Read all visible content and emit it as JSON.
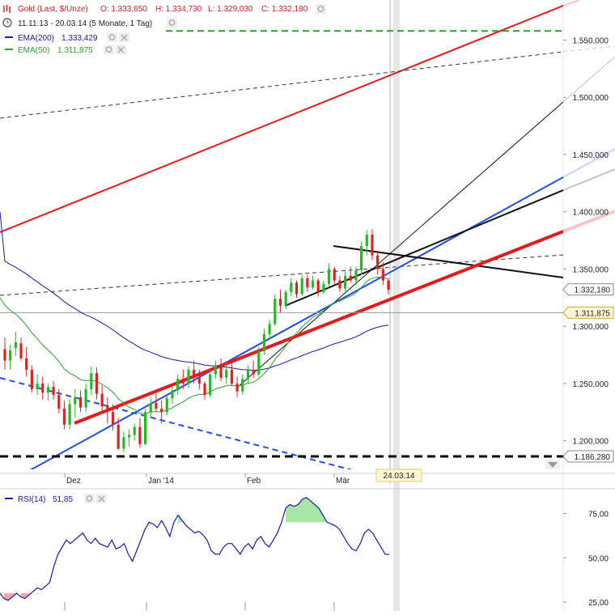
{
  "header": {
    "instrument": "Gold (Last, $/Unze)",
    "ohlc_o": "O: 1.333,650",
    "ohlc_h": "H: 1.334,730",
    "ohlc_l": "L: 1.329,030",
    "ohlc_c": "C: 1.332,180",
    "range": "11.11.13 - 20.03.14 (5 Monate, 1 Tag)",
    "ema200": "EMA(200)",
    "ema200_value": "1.333,429",
    "ema50": "EMA(50)",
    "ema50_value": "1.311,875"
  },
  "rsi_panel": {
    "label": "RSI(14)",
    "value": "51,85"
  },
  "cursor_date": "24.03.14",
  "colors": {
    "up": "#22bb22",
    "down": "#dd2222",
    "ema200": "#1a1aa8",
    "ema50": "#2ca02c",
    "trend_red": "#e31b1b",
    "trend_blue": "#1f4fe0",
    "rsi": "#1a1aa8",
    "rsi_overbought_fill": "#a8e6a8",
    "rsi_oversold_fill": "#f4a6a6"
  },
  "icons": [
    "gold-logo-icon",
    "clock-icon",
    "settings-icon",
    "close-icon",
    "scroll-down-icon"
  ],
  "chart_data": [
    {
      "type": "candlestick",
      "title": "Gold (Last, $/Unze)",
      "x_ticks": [
        "Dez",
        "Jan '14",
        "Feb",
        "Mär"
      ],
      "y_ticks": [
        "1.200,000",
        "1.250,000",
        "1.300,000",
        "1.350,000",
        "1.400,000",
        "1.450,000",
        "1.500,000",
        "1.550,000"
      ],
      "ylim": [
        1175,
        1585
      ],
      "price_tags": [
        {
          "text": "1.332,180",
          "value": 1332.18
        },
        {
          "text": "1.311,875",
          "value": 1311.875
        },
        {
          "text": "1.186,280",
          "value": 1186.28
        }
      ],
      "horizontal_levels": [
        {
          "value": 1558,
          "style": "dashed",
          "color": "#2ca02c"
        },
        {
          "value": 1186.28,
          "style": "dashed",
          "color": "#000000"
        },
        {
          "value": 1311.875,
          "style": "solid",
          "color": "#999999"
        }
      ],
      "candles": [
        [
          1280,
          1290,
          1262,
          1270
        ],
        [
          1270,
          1284,
          1262,
          1279
        ],
        [
          1281,
          1295,
          1274,
          1286
        ],
        [
          1285,
          1290,
          1270,
          1272
        ],
        [
          1272,
          1282,
          1256,
          1262
        ],
        [
          1262,
          1266,
          1242,
          1245
        ],
        [
          1245,
          1258,
          1240,
          1250
        ],
        [
          1250,
          1256,
          1236,
          1242
        ],
        [
          1242,
          1250,
          1235,
          1247
        ],
        [
          1247,
          1252,
          1236,
          1240
        ],
        [
          1240,
          1245,
          1224,
          1228
        ],
        [
          1228,
          1235,
          1210,
          1214
        ],
        [
          1214,
          1236,
          1210,
          1232
        ],
        [
          1232,
          1245,
          1220,
          1238
        ],
        [
          1238,
          1244,
          1225,
          1229
        ],
        [
          1229,
          1250,
          1225,
          1245
        ],
        [
          1245,
          1265,
          1240,
          1259
        ],
        [
          1259,
          1264,
          1236,
          1241
        ],
        [
          1241,
          1248,
          1226,
          1230
        ],
        [
          1230,
          1238,
          1215,
          1225
        ],
        [
          1225,
          1232,
          1209,
          1214
        ],
        [
          1214,
          1220,
          1192,
          1193
        ],
        [
          1193,
          1208,
          1190,
          1203
        ],
        [
          1203,
          1210,
          1195,
          1205
        ],
        [
          1205,
          1215,
          1200,
          1212
        ],
        [
          1212,
          1220,
          1194,
          1197
        ],
        [
          1197,
          1228,
          1196,
          1225
        ],
        [
          1225,
          1238,
          1220,
          1233
        ],
        [
          1233,
          1245,
          1225,
          1228
        ],
        [
          1228,
          1235,
          1215,
          1225
        ],
        [
          1225,
          1240,
          1222,
          1237
        ],
        [
          1237,
          1247,
          1232,
          1244
        ],
        [
          1244,
          1258,
          1240,
          1254
        ],
        [
          1254,
          1262,
          1245,
          1250
        ],
        [
          1250,
          1265,
          1246,
          1262
        ],
        [
          1262,
          1270,
          1250,
          1255
        ],
        [
          1255,
          1262,
          1245,
          1250
        ],
        [
          1250,
          1252,
          1236,
          1240
        ],
        [
          1240,
          1262,
          1238,
          1258
        ],
        [
          1258,
          1270,
          1254,
          1266
        ],
        [
          1266,
          1272,
          1252,
          1255
        ],
        [
          1255,
          1268,
          1250,
          1262
        ],
        [
          1262,
          1268,
          1248,
          1250
        ],
        [
          1250,
          1256,
          1238,
          1243
        ],
        [
          1243,
          1258,
          1240,
          1254
        ],
        [
          1254,
          1266,
          1250,
          1262
        ],
        [
          1262,
          1270,
          1255,
          1258
        ],
        [
          1258,
          1282,
          1256,
          1278
        ],
        [
          1278,
          1298,
          1275,
          1293
        ],
        [
          1293,
          1306,
          1288,
          1302
        ],
        [
          1302,
          1328,
          1300,
          1324
        ],
        [
          1324,
          1332,
          1312,
          1318
        ],
        [
          1318,
          1332,
          1315,
          1330
        ],
        [
          1330,
          1342,
          1326,
          1338
        ],
        [
          1338,
          1340,
          1325,
          1328
        ],
        [
          1328,
          1345,
          1326,
          1342
        ],
        [
          1342,
          1345,
          1330,
          1334
        ],
        [
          1334,
          1344,
          1332,
          1340
        ],
        [
          1340,
          1342,
          1326,
          1330
        ],
        [
          1330,
          1340,
          1328,
          1337
        ],
        [
          1337,
          1355,
          1334,
          1350
        ],
        [
          1350,
          1352,
          1336,
          1340
        ],
        [
          1340,
          1344,
          1330,
          1333
        ],
        [
          1333,
          1348,
          1330,
          1344
        ],
        [
          1344,
          1352,
          1338,
          1340
        ],
        [
          1340,
          1352,
          1336,
          1349
        ],
        [
          1349,
          1374,
          1345,
          1370
        ],
        [
          1370,
          1384,
          1362,
          1380
        ],
        [
          1380,
          1385,
          1358,
          1362
        ],
        [
          1362,
          1366,
          1345,
          1350
        ],
        [
          1350,
          1356,
          1336,
          1340
        ],
        [
          1340,
          1342,
          1328,
          1332
        ]
      ]
    },
    {
      "type": "line",
      "title": "RSI(14)",
      "y_ticks": [
        "25,00",
        "50,00",
        "75,00"
      ],
      "ylim": [
        20,
        88
      ],
      "x_tick_positions": [
        "Dez",
        "Jan '14",
        "Feb",
        "Mär"
      ],
      "values": [
        30,
        27,
        26,
        28,
        30,
        28,
        27,
        29,
        31,
        33,
        32,
        34,
        36,
        45,
        52,
        56,
        60,
        58,
        60,
        62,
        64,
        60,
        58,
        61,
        58,
        57,
        56,
        60,
        55,
        56,
        58,
        52,
        48,
        54,
        60,
        66,
        70,
        69,
        67,
        71,
        67,
        62,
        70,
        74,
        71,
        68,
        66,
        64,
        65,
        63,
        60,
        54,
        52,
        52,
        56,
        58,
        58,
        55,
        52,
        56,
        58,
        55,
        60,
        62,
        58,
        56,
        60,
        64,
        70,
        78,
        80,
        79,
        80,
        83,
        84,
        82,
        80,
        78,
        74,
        70,
        69,
        68,
        66,
        62,
        58,
        55,
        54,
        58,
        64,
        66,
        64,
        60,
        56,
        52,
        51.85
      ]
    }
  ]
}
